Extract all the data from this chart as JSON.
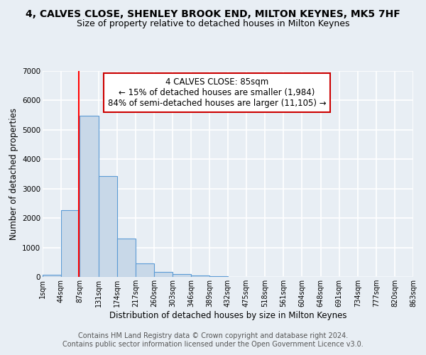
{
  "title": "4, CALVES CLOSE, SHENLEY BROOK END, MILTON KEYNES, MK5 7HF",
  "subtitle": "Size of property relative to detached houses in Milton Keynes",
  "xlabel": "Distribution of detached houses by size in Milton Keynes",
  "ylabel": "Number of detached properties",
  "bin_edges": [
    1,
    44,
    87,
    131,
    174,
    217,
    260,
    303,
    346,
    389,
    432,
    475,
    518,
    561,
    604,
    648,
    691,
    734,
    777,
    820,
    863
  ],
  "bin_counts": [
    75,
    2280,
    5470,
    3420,
    1310,
    450,
    175,
    95,
    50,
    20,
    10,
    5,
    3,
    2,
    2,
    1,
    1,
    1,
    1,
    1
  ],
  "bar_color": "#c8d8e8",
  "bar_edge_color": "#5b9bd5",
  "property_size": 85,
  "red_line_color": "#ff0000",
  "annotation_box_color": "#ffffff",
  "annotation_box_edge_color": "#cc0000",
  "annotation_title": "4 CALVES CLOSE: 85sqm",
  "annotation_line1": "← 15% of detached houses are smaller (1,984)",
  "annotation_line2": "84% of semi-detached houses are larger (11,105) →",
  "ylim": [
    0,
    7000
  ],
  "tick_labels": [
    "1sqm",
    "44sqm",
    "87sqm",
    "131sqm",
    "174sqm",
    "217sqm",
    "260sqm",
    "303sqm",
    "346sqm",
    "389sqm",
    "432sqm",
    "475sqm",
    "518sqm",
    "561sqm",
    "604sqm",
    "648sqm",
    "691sqm",
    "734sqm",
    "777sqm",
    "820sqm",
    "863sqm"
  ],
  "footnote_line1": "Contains HM Land Registry data © Crown copyright and database right 2024.",
  "footnote_line2": "Contains public sector information licensed under the Open Government Licence v3.0.",
  "background_color": "#e8eef4",
  "plot_background_color": "#e8eef4",
  "grid_color": "#ffffff",
  "title_fontsize": 10,
  "subtitle_fontsize": 9,
  "axis_label_fontsize": 8.5,
  "tick_fontsize": 7,
  "annotation_fontsize": 8.5,
  "footnote_fontsize": 7
}
